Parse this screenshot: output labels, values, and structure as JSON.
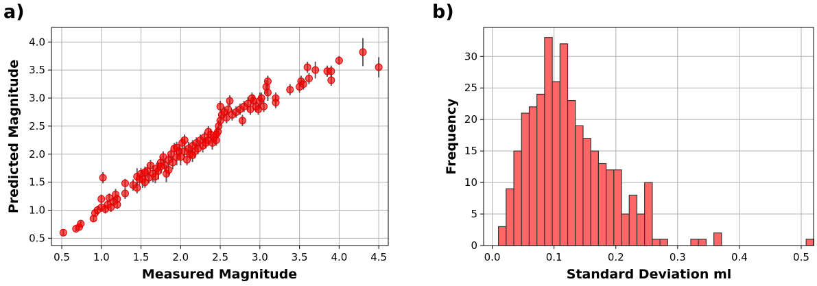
{
  "chart_data": [
    {
      "type": "scatter",
      "panel_label": "a)",
      "xlabel": "Measured Magnitude",
      "ylabel": "Predicted Magnitude",
      "xlim": [
        0.37,
        4.62
      ],
      "ylim": [
        0.37,
        4.26
      ],
      "xticks": [
        0.5,
        1.0,
        1.5,
        2.0,
        2.5,
        3.0,
        3.5,
        4.0,
        4.5
      ],
      "xtick_labels": [
        "0.5",
        "1.0",
        "1.5",
        "2.0",
        "2.5",
        "3.0",
        "3.5",
        "4.0",
        "4.5"
      ],
      "yticks": [
        0.5,
        1.0,
        1.5,
        2.0,
        2.5,
        3.0,
        3.5,
        4.0
      ],
      "ytick_labels": [
        "0.5",
        "1.0",
        "1.5",
        "2.0",
        "2.5",
        "3.0",
        "3.5",
        "4.0"
      ],
      "grid": true,
      "point_color": "#ff0000",
      "errorbar_color": "#333333",
      "points": [
        [
          0.52,
          0.6,
          0.06
        ],
        [
          0.68,
          0.67,
          0.05
        ],
        [
          0.72,
          0.7,
          0.05
        ],
        [
          0.74,
          0.76,
          0.05
        ],
        [
          0.9,
          0.85,
          0.06
        ],
        [
          0.92,
          0.95,
          0.07
        ],
        [
          0.95,
          1.0,
          0.08
        ],
        [
          1.0,
          1.05,
          0.08
        ],
        [
          1.0,
          1.2,
          0.08
        ],
        [
          1.02,
          1.58,
          0.1
        ],
        [
          1.05,
          1.02,
          0.08
        ],
        [
          1.08,
          1.1,
          0.08
        ],
        [
          1.1,
          1.22,
          0.08
        ],
        [
          1.12,
          1.05,
          0.08
        ],
        [
          1.15,
          1.15,
          0.08
        ],
        [
          1.18,
          1.28,
          0.1
        ],
        [
          1.2,
          1.1,
          0.08
        ],
        [
          1.2,
          1.2,
          0.08
        ],
        [
          1.3,
          1.3,
          0.1
        ],
        [
          1.3,
          1.48,
          0.08
        ],
        [
          1.4,
          1.45,
          0.1
        ],
        [
          1.45,
          1.6,
          0.15
        ],
        [
          1.45,
          1.4,
          0.1
        ],
        [
          1.48,
          1.55,
          0.1
        ],
        [
          1.5,
          1.65,
          0.1
        ],
        [
          1.52,
          1.55,
          0.15
        ],
        [
          1.55,
          1.5,
          0.1
        ],
        [
          1.58,
          1.7,
          0.12
        ],
        [
          1.6,
          1.58,
          0.1
        ],
        [
          1.62,
          1.8,
          0.1
        ],
        [
          1.65,
          1.65,
          0.15
        ],
        [
          1.68,
          1.6,
          0.12
        ],
        [
          1.7,
          1.75,
          0.1
        ],
        [
          1.72,
          1.7,
          0.15
        ],
        [
          1.75,
          1.85,
          0.1
        ],
        [
          1.78,
          1.95,
          0.1
        ],
        [
          1.8,
          1.8,
          0.12
        ],
        [
          1.82,
          1.65,
          0.15
        ],
        [
          1.85,
          1.9,
          0.1
        ],
        [
          1.88,
          2.0,
          0.1
        ],
        [
          1.9,
          1.85,
          0.12
        ],
        [
          1.92,
          2.1,
          0.1
        ],
        [
          1.95,
          1.95,
          0.15
        ],
        [
          1.98,
          2.05,
          0.1
        ],
        [
          2.0,
          1.95,
          0.15
        ],
        [
          2.02,
          2.2,
          0.1
        ],
        [
          2.05,
          2.05,
          0.12
        ],
        [
          2.08,
          1.9,
          0.1
        ],
        [
          2.1,
          2.1,
          0.12
        ],
        [
          2.12,
          2.0,
          0.1
        ],
        [
          2.15,
          2.15,
          0.1
        ],
        [
          2.18,
          2.05,
          0.12
        ],
        [
          2.2,
          2.2,
          0.1
        ],
        [
          2.22,
          2.1,
          0.1
        ],
        [
          2.25,
          2.25,
          0.1
        ],
        [
          2.28,
          2.15,
          0.12
        ],
        [
          2.3,
          2.3,
          0.1
        ],
        [
          2.32,
          2.2,
          0.1
        ],
        [
          2.35,
          2.25,
          0.1
        ],
        [
          2.38,
          2.35,
          0.1
        ],
        [
          2.4,
          2.2,
          0.12
        ],
        [
          2.42,
          2.3,
          0.1
        ],
        [
          2.45,
          2.25,
          0.1
        ],
        [
          2.47,
          2.4,
          0.1
        ],
        [
          2.48,
          2.5,
          0.1
        ],
        [
          2.5,
          2.6,
          0.1
        ],
        [
          2.5,
          2.85,
          0.1
        ],
        [
          2.52,
          2.7,
          0.1
        ],
        [
          2.55,
          2.75,
          0.1
        ],
        [
          2.58,
          2.65,
          0.1
        ],
        [
          2.6,
          2.8,
          0.1
        ],
        [
          2.62,
          2.95,
          0.1
        ],
        [
          2.65,
          2.7,
          0.1
        ],
        [
          2.7,
          2.75,
          0.1
        ],
        [
          2.75,
          2.8,
          0.1
        ],
        [
          2.78,
          2.6,
          0.1
        ],
        [
          2.8,
          2.85,
          0.1
        ],
        [
          2.85,
          2.9,
          0.12
        ],
        [
          2.88,
          2.8,
          0.1
        ],
        [
          2.9,
          3.0,
          0.1
        ],
        [
          2.92,
          2.95,
          0.1
        ],
        [
          2.95,
          2.85,
          0.1
        ],
        [
          2.98,
          2.8,
          0.1
        ],
        [
          3.0,
          2.95,
          0.15
        ],
        [
          3.02,
          3.0,
          0.1
        ],
        [
          3.05,
          2.85,
          0.1
        ],
        [
          3.08,
          3.2,
          0.12
        ],
        [
          3.1,
          3.1,
          0.15
        ],
        [
          3.1,
          3.3,
          0.1
        ],
        [
          3.2,
          3.0,
          0.1
        ],
        [
          3.2,
          2.92,
          0.1
        ],
        [
          3.38,
          3.15,
          0.1
        ],
        [
          3.5,
          3.2,
          0.1
        ],
        [
          3.52,
          3.3,
          0.1
        ],
        [
          3.55,
          3.25,
          0.1
        ],
        [
          3.6,
          3.55,
          0.1
        ],
        [
          3.62,
          3.35,
          0.1
        ],
        [
          3.7,
          3.5,
          0.15
        ],
        [
          3.85,
          3.48,
          0.1
        ],
        [
          3.9,
          3.48,
          0.1
        ],
        [
          3.9,
          3.32,
          0.1
        ],
        [
          4.0,
          3.67,
          0.08
        ],
        [
          4.3,
          3.82,
          0.25
        ],
        [
          4.5,
          3.55,
          0.18
        ],
        [
          1.55,
          1.68,
          0.1
        ],
        [
          1.75,
          1.78,
          0.12
        ],
        [
          1.95,
          2.12,
          0.1
        ],
        [
          2.15,
          1.98,
          0.12
        ],
        [
          2.35,
          2.4,
          0.1
        ],
        [
          2.45,
          2.35,
          0.12
        ],
        [
          2.05,
          2.25,
          0.1
        ],
        [
          1.85,
          1.72,
          0.1
        ]
      ]
    },
    {
      "type": "bar",
      "panel_label": "b)",
      "xlabel": "Standard Deviation ml",
      "ylabel": "Frequency",
      "xlim": [
        -0.014,
        0.52
      ],
      "ylim": [
        0,
        34.6
      ],
      "xticks": [
        0.0,
        0.1,
        0.2,
        0.3,
        0.4,
        0.5
      ],
      "xtick_labels": [
        "0.0",
        "0.1",
        "0.2",
        "0.3",
        "0.4",
        "0.5"
      ],
      "yticks": [
        0,
        5,
        10,
        15,
        20,
        25,
        30
      ],
      "ytick_labels": [
        "0",
        "5",
        "10",
        "15",
        "20",
        "25",
        "30"
      ],
      "grid": true,
      "bar_color": "#ff6666",
      "edge_color": "#333333",
      "bin_start": 0.01,
      "bin_width": 0.01245,
      "values": [
        3,
        9,
        15,
        21,
        22,
        24,
        33,
        26,
        32,
        23,
        19,
        17,
        15,
        13,
        12,
        12,
        5,
        8,
        5,
        10,
        1,
        1,
        0,
        0,
        0,
        1,
        1,
        0,
        2,
        0,
        0,
        0,
        0,
        0,
        0,
        0,
        0,
        0,
        0,
        0,
        1
      ]
    }
  ]
}
